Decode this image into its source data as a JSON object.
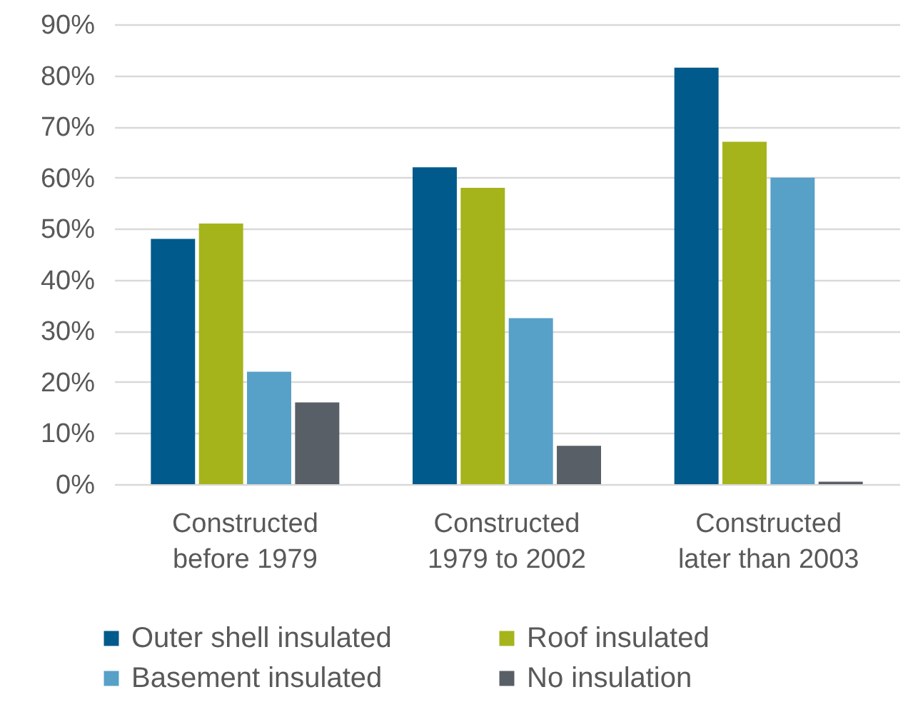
{
  "chart_data": {
    "type": "bar",
    "categories": [
      "Constructed before 1979",
      "Constructed 1979 to 2002",
      "Constructed later than 2003"
    ],
    "series": [
      {
        "name": "Outer shell insulated",
        "color": "#005a8c",
        "values": [
          48,
          62,
          81.5
        ]
      },
      {
        "name": "Roof insulated",
        "color": "#a5b41b",
        "values": [
          51,
          58,
          67
        ]
      },
      {
        "name": "Basement insulated",
        "color": "#57a0c8",
        "values": [
          22,
          32.5,
          60
        ]
      },
      {
        "name": "No insulation",
        "color": "#595f66",
        "values": [
          16,
          7.5,
          0.5
        ]
      }
    ],
    "ylim": [
      0,
      90
    ],
    "yticks": [
      {
        "value": 0,
        "label": "0%"
      },
      {
        "value": 10,
        "label": "10%"
      },
      {
        "value": 20,
        "label": "20%"
      },
      {
        "value": 30,
        "label": "30%"
      },
      {
        "value": 40,
        "label": "40%"
      },
      {
        "value": 50,
        "label": "50%"
      },
      {
        "value": 60,
        "label": "60%"
      },
      {
        "value": 70,
        "label": "70%"
      },
      {
        "value": 80,
        "label": "80%"
      },
      {
        "value": 90,
        "label": "90%"
      }
    ],
    "grid": "y",
    "legend": "bottom"
  }
}
